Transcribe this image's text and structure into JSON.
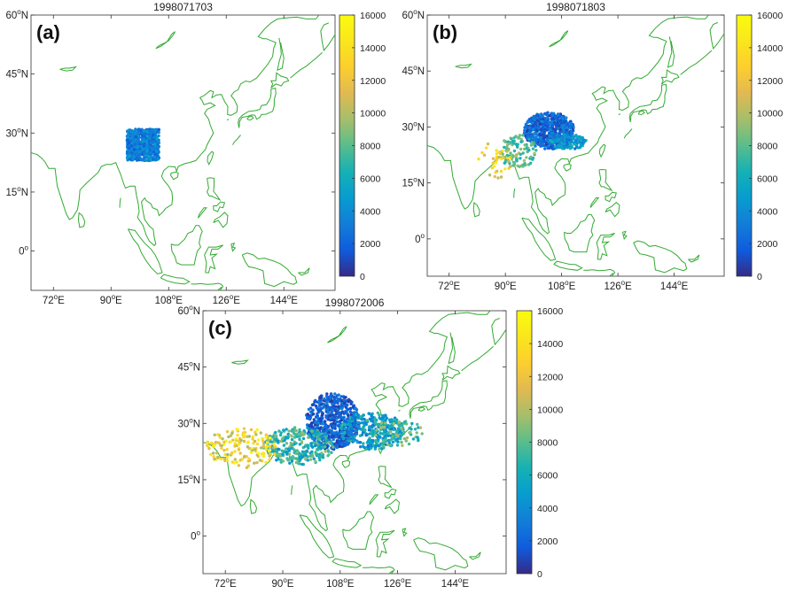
{
  "chart_data": [
    {
      "type": "scatter",
      "panel_label": "(a)",
      "title": "1998071703",
      "xlim": [
        65,
        160
      ],
      "ylim": [
        -10,
        60
      ],
      "x_ticks": [
        72,
        90,
        108,
        126,
        144
      ],
      "y_ticks": [
        0,
        15,
        30,
        45,
        60
      ],
      "x_tick_labels": [
        {
          "num": "72",
          "deg": "o",
          "dir": "E"
        },
        {
          "num": "90",
          "deg": "o",
          "dir": "E"
        },
        {
          "num": "108",
          "deg": "o",
          "dir": "E"
        },
        {
          "num": "126",
          "deg": "o",
          "dir": "E"
        },
        {
          "num": "144",
          "deg": "o",
          "dir": "E"
        }
      ],
      "y_tick_labels": [
        {
          "num": "0",
          "deg": "o",
          "dir": ""
        },
        {
          "num": "15",
          "deg": "o",
          "dir": "N"
        },
        {
          "num": "30",
          "deg": "o",
          "dir": "N"
        },
        {
          "num": "45",
          "deg": "o",
          "dir": "N"
        },
        {
          "num": "60",
          "deg": "o",
          "dir": "N"
        }
      ],
      "colorbar": {
        "range": [
          0,
          16000
        ],
        "ticks": [
          0,
          2000,
          4000,
          6000,
          8000,
          10000,
          12000,
          14000,
          16000
        ]
      },
      "coast_color": "#33aa33",
      "clusters": [
        {
          "lon": [
            95,
            105
          ],
          "lat": [
            23,
            31
          ],
          "n": 700,
          "val": [
            1500,
            5200
          ],
          "shape": "box"
        }
      ]
    },
    {
      "type": "scatter",
      "panel_label": "(b)",
      "title": "1998071803",
      "xlim": [
        65,
        160
      ],
      "ylim": [
        -10,
        60
      ],
      "x_ticks": [
        72,
        90,
        108,
        126,
        144
      ],
      "y_ticks": [
        0,
        15,
        30,
        45,
        60
      ],
      "x_tick_labels": [
        {
          "num": "72",
          "deg": "o",
          "dir": "E"
        },
        {
          "num": "90",
          "deg": "o",
          "dir": "E"
        },
        {
          "num": "108",
          "deg": "o",
          "dir": "E"
        },
        {
          "num": "126",
          "deg": "o",
          "dir": "E"
        },
        {
          "num": "144",
          "deg": "o",
          "dir": "E"
        }
      ],
      "y_tick_labels": [
        {
          "num": "0",
          "deg": "o",
          "dir": ""
        },
        {
          "num": "15",
          "deg": "o",
          "dir": "N"
        },
        {
          "num": "30",
          "deg": "o",
          "dir": "N"
        },
        {
          "num": "45",
          "deg": "o",
          "dir": "N"
        },
        {
          "num": "60",
          "deg": "o",
          "dir": "N"
        }
      ],
      "colorbar": {
        "range": [
          0,
          16000
        ],
        "ticks": [
          0,
          2000,
          4000,
          6000,
          8000,
          10000,
          12000,
          14000,
          16000
        ]
      },
      "coast_color": "#33aa33",
      "clusters": [
        {
          "lon": [
            96,
            112
          ],
          "lat": [
            24,
            34
          ],
          "n": 600,
          "val": [
            500,
            4000
          ],
          "shape": "ellipse"
        },
        {
          "lon": [
            104,
            116
          ],
          "lat": [
            24,
            28
          ],
          "n": 150,
          "val": [
            2500,
            6500
          ],
          "shape": "ellipse"
        },
        {
          "lon": [
            88,
            100
          ],
          "lat": [
            19,
            28
          ],
          "n": 110,
          "val": [
            6000,
            10000
          ],
          "shape": "ellipse"
        },
        {
          "lon": [
            81,
            92
          ],
          "lat": [
            16,
            26
          ],
          "n": 35,
          "val": [
            10000,
            15500
          ],
          "shape": "ellipse"
        }
      ]
    },
    {
      "type": "scatter",
      "panel_label": "(c)",
      "title": "1998072006",
      "xlim": [
        65,
        160
      ],
      "ylim": [
        -10,
        60
      ],
      "x_ticks": [
        72,
        90,
        108,
        126,
        144
      ],
      "y_ticks": [
        0,
        15,
        30,
        45,
        60
      ],
      "x_tick_labels": [
        {
          "num": "72",
          "deg": "o",
          "dir": "E"
        },
        {
          "num": "90",
          "deg": "o",
          "dir": "E"
        },
        {
          "num": "108",
          "deg": "o",
          "dir": "E"
        },
        {
          "num": "126",
          "deg": "o",
          "dir": "E"
        },
        {
          "num": "144",
          "deg": "o",
          "dir": "E"
        }
      ],
      "y_tick_labels": [
        {
          "num": "0",
          "deg": "o",
          "dir": ""
        },
        {
          "num": "15",
          "deg": "o",
          "dir": "N"
        },
        {
          "num": "30",
          "deg": "o",
          "dir": "N"
        },
        {
          "num": "45",
          "deg": "o",
          "dir": "N"
        },
        {
          "num": "60",
          "deg": "o",
          "dir": "N"
        }
      ],
      "colorbar": {
        "range": [
          0,
          16000
        ],
        "ticks": [
          0,
          2000,
          4000,
          6000,
          8000,
          10000,
          12000,
          14000,
          16000
        ]
      },
      "coast_color": "#33aa33",
      "clusters": [
        {
          "lon": [
            97,
            114
          ],
          "lat": [
            23,
            38
          ],
          "n": 650,
          "val": [
            300,
            3500
          ],
          "shape": "ellipse"
        },
        {
          "lon": [
            108,
            128
          ],
          "lat": [
            23,
            33
          ],
          "n": 320,
          "val": [
            2500,
            7500
          ],
          "shape": "ellipse"
        },
        {
          "lon": [
            84,
            106
          ],
          "lat": [
            19,
            29
          ],
          "n": 300,
          "val": [
            4000,
            9500
          ],
          "shape": "ellipse"
        },
        {
          "lon": [
            118,
            134
          ],
          "lat": [
            24,
            31
          ],
          "n": 90,
          "val": [
            5000,
            10000
          ],
          "shape": "ellipse"
        },
        {
          "lon": [
            66,
            88
          ],
          "lat": [
            18,
            29
          ],
          "n": 160,
          "val": [
            9000,
            16000
          ],
          "shape": "ellipse"
        }
      ]
    }
  ]
}
